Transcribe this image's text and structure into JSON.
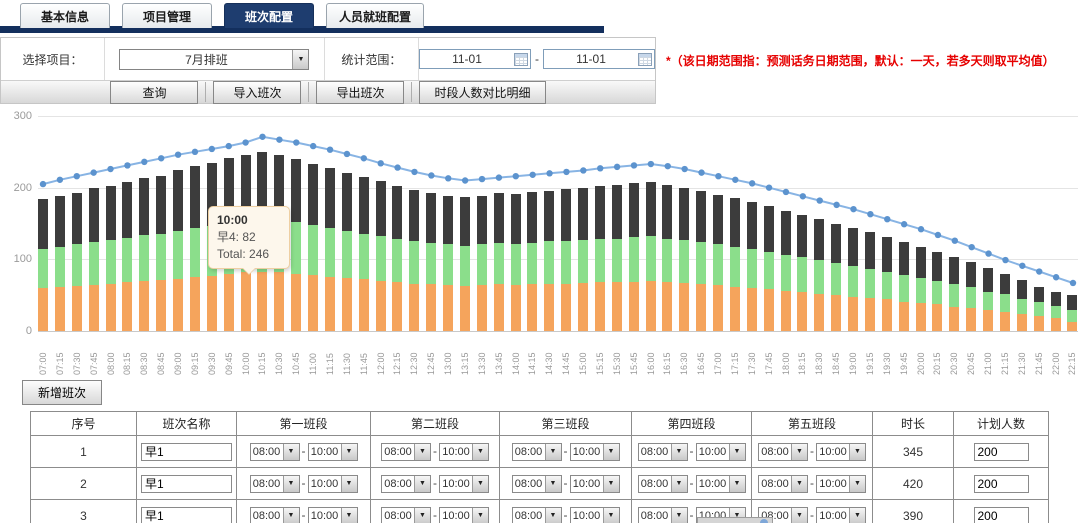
{
  "tabs": [
    {
      "label": "基本信息",
      "active": false
    },
    {
      "label": "项目管理",
      "active": false
    },
    {
      "label": "班次配置",
      "active": true
    },
    {
      "label": "人员就班配置",
      "active": false
    }
  ],
  "filter": {
    "project_label": "选择项目：",
    "project_value": "7月排班",
    "range_label": "统计范围：",
    "date_from": "11-01",
    "date_to": "11-01",
    "note": "*（该日期范围指：预测话务日期范围，默认：一天，若多天则取平均值）"
  },
  "toolbar": {
    "buttons": [
      "查询",
      "导入班次",
      "导出班次",
      "时段人数对比明细"
    ]
  },
  "chart_data": {
    "type": "bar",
    "subtype": "stacked-bars-with-line",
    "title": "",
    "xlabel": "",
    "ylabel": "",
    "ylim": [
      0,
      300
    ],
    "yticks": [
      0,
      100,
      200,
      300
    ],
    "grid": true,
    "categories": [
      "07:00",
      "07:15",
      "07:30",
      "07:45",
      "08:00",
      "08:15",
      "08:30",
      "08:45",
      "09:00",
      "09:15",
      "09:30",
      "09:45",
      "10:00",
      "10:15",
      "10:30",
      "10:45",
      "11:00",
      "11:15",
      "11:30",
      "11:45",
      "12:00",
      "12:15",
      "12:30",
      "12:45",
      "13:00",
      "13:15",
      "13:30",
      "13:45",
      "14:00",
      "14:15",
      "14:30",
      "14:45",
      "15:00",
      "15:15",
      "15:30",
      "15:45",
      "16:00",
      "16:15",
      "16:30",
      "16:45",
      "17:00",
      "17:15",
      "17:30",
      "17:45",
      "18:00",
      "18:15",
      "18:30",
      "18:45",
      "19:00",
      "19:15",
      "19:30",
      "19:45",
      "20:00",
      "20:15",
      "20:30",
      "20:45",
      "21:00",
      "21:15",
      "21:30",
      "21:45",
      "22:00",
      "22:15"
    ],
    "series": [
      {
        "name": "早4",
        "stack_position": "bottom",
        "color": "#f5a45c",
        "values": [
          60,
          61,
          63,
          64,
          66,
          68,
          70,
          71,
          73,
          75,
          77,
          79,
          82,
          83,
          82,
          80,
          78,
          76,
          74,
          72,
          70,
          68,
          66,
          65,
          64,
          63,
          64,
          65,
          64,
          65,
          66,
          66,
          67,
          68,
          68,
          69,
          70,
          68,
          67,
          65,
          64,
          62,
          60,
          58,
          56,
          54,
          52,
          50,
          48,
          46,
          44,
          41,
          39,
          37,
          34,
          32,
          29,
          27,
          24,
          21,
          18,
          12
        ]
      },
      {
        "name": "",
        "stack_position": "middle",
        "color": "#8bde8b",
        "values": [
          55,
          56,
          58,
          60,
          61,
          62,
          64,
          65,
          67,
          69,
          70,
          72,
          73,
          75,
          74,
          72,
          70,
          68,
          66,
          64,
          63,
          61,
          59,
          58,
          57,
          56,
          57,
          58,
          57,
          58,
          59,
          59,
          60,
          61,
          61,
          62,
          62,
          61,
          60,
          59,
          57,
          55,
          54,
          52,
          50,
          49,
          47,
          45,
          43,
          41,
          39,
          37,
          35,
          33,
          31,
          29,
          26,
          24,
          21,
          19,
          17,
          18
        ]
      },
      {
        "name": "",
        "stack_position": "top",
        "color": "#3c3c3c",
        "values": [
          69,
          71,
          72,
          75,
          76,
          78,
          79,
          81,
          84,
          86,
          88,
          90,
          91,
          92,
          90,
          88,
          85,
          83,
          81,
          79,
          76,
          74,
          72,
          69,
          68,
          68,
          68,
          69,
          70,
          71,
          71,
          73,
          73,
          73,
          75,
          75,
          76,
          75,
          73,
          71,
          69,
          68,
          66,
          64,
          62,
          59,
          57,
          55,
          53,
          51,
          48,
          46,
          43,
          40,
          38,
          35,
          33,
          29,
          26,
          22,
          20,
          20
        ]
      }
    ],
    "line_series": {
      "name": "",
      "color": "#88b4e4",
      "marker_color": "#5c93ce",
      "values": [
        205,
        211,
        216,
        221,
        226,
        231,
        236,
        241,
        246,
        250,
        254,
        258,
        263,
        271,
        267,
        263,
        258,
        253,
        247,
        241,
        234,
        228,
        222,
        217,
        213,
        210,
        212,
        214,
        216,
        218,
        220,
        222,
        224,
        227,
        229,
        231,
        233,
        230,
        226,
        221,
        216,
        211,
        206,
        200,
        194,
        188,
        182,
        176,
        170,
        163,
        156,
        149,
        142,
        134,
        126,
        117,
        108,
        99,
        91,
        83,
        75,
        67
      ]
    },
    "tooltip": {
      "title": "10:00",
      "series_line": "早4: 82",
      "total_line": "Total: 246",
      "category_index": 12
    }
  },
  "shift_section": {
    "add_button": "新增班次",
    "table": {
      "headers": [
        "序号",
        "班次名称",
        "第一班段",
        "第二班段",
        "第三班段",
        "第四班段",
        "第五班段",
        "时长",
        "计划人数"
      ],
      "segment_from": "08:00",
      "segment_to": "10:00",
      "rows": [
        {
          "no": "1",
          "name": "早1",
          "duration": "345",
          "planned": "200"
        },
        {
          "no": "2",
          "name": "早1",
          "duration": "420",
          "planned": "200"
        },
        {
          "no": "3",
          "name": "早1",
          "duration": "390",
          "planned": "200"
        }
      ]
    }
  }
}
